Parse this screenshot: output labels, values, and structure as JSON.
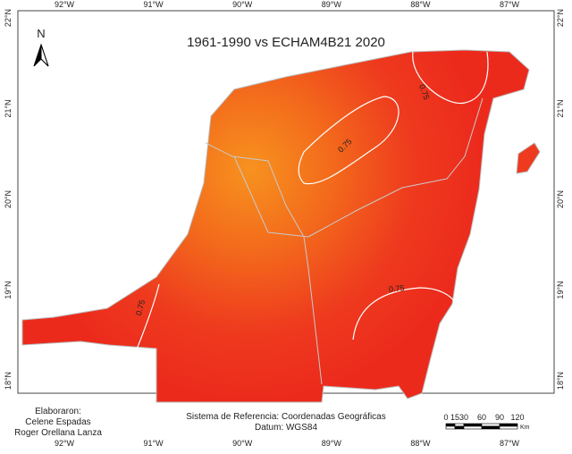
{
  "title": "1961-1990 vs ECHAM4B21 2020",
  "north": "N",
  "longitudes": [
    "92°W",
    "91°W",
    "90°W",
    "89°W",
    "88°W",
    "87°W"
  ],
  "latitudes": [
    "22°N",
    "21°N",
    "20°N",
    "19°N",
    "18°N"
  ],
  "contours": [
    "0.75",
    "0.75",
    "0.75",
    "0.75"
  ],
  "credits": {
    "heading": "Elaboraron:",
    "authors": [
      "Celene Espadas",
      "Roger Orellana Lanza"
    ]
  },
  "reference": {
    "system": "Sistema de Referencia: Coordenadas Geográficas",
    "datum": "Datum: WGS84"
  },
  "scale": {
    "ticks": [
      0,
      15,
      30,
      60,
      90,
      120
    ],
    "unit": "Km"
  }
}
